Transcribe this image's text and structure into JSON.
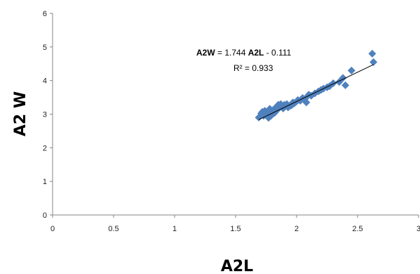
{
  "chart_data": {
    "type": "scatter",
    "xlabel": "A2L",
    "ylabel": "A2 W",
    "xlim": [
      0,
      3
    ],
    "ylim": [
      0,
      6
    ],
    "x_ticks": [
      "0",
      "0.5",
      "1",
      "1.5",
      "2",
      "2.5",
      "3"
    ],
    "y_ticks": [
      "0",
      "1",
      "2",
      "3",
      "4",
      "5",
      "6"
    ],
    "grid": false,
    "colors": {
      "points": "#4F81BD",
      "trendline": "#000000",
      "axis": "#868686"
    },
    "points": [
      [
        1.69,
        2.9
      ],
      [
        1.71,
        3.02
      ],
      [
        1.72,
        3.07
      ],
      [
        1.73,
        2.95
      ],
      [
        1.74,
        3.1
      ],
      [
        1.75,
        3.0
      ],
      [
        1.76,
        3.04
      ],
      [
        1.77,
        2.89
      ],
      [
        1.78,
        3.16
      ],
      [
        1.79,
        2.95
      ],
      [
        1.8,
        3.08
      ],
      [
        1.81,
        3.13
      ],
      [
        1.82,
        3.04
      ],
      [
        1.83,
        3.2
      ],
      [
        1.84,
        3.12
      ],
      [
        1.85,
        3.28
      ],
      [
        1.86,
        3.2
      ],
      [
        1.87,
        3.3
      ],
      [
        1.88,
        3.22
      ],
      [
        1.89,
        3.17
      ],
      [
        1.9,
        3.28
      ],
      [
        1.92,
        3.3
      ],
      [
        1.93,
        3.2
      ],
      [
        1.95,
        3.25
      ],
      [
        1.96,
        3.27
      ],
      [
        1.97,
        3.35
      ],
      [
        1.98,
        3.32
      ],
      [
        2.0,
        3.38
      ],
      [
        2.01,
        3.42
      ],
      [
        2.03,
        3.4
      ],
      [
        2.04,
        3.45
      ],
      [
        2.05,
        3.48
      ],
      [
        2.07,
        3.46
      ],
      [
        2.08,
        3.35
      ],
      [
        2.1,
        3.58
      ],
      [
        2.12,
        3.55
      ],
      [
        2.15,
        3.62
      ],
      [
        2.18,
        3.68
      ],
      [
        2.2,
        3.72
      ],
      [
        2.22,
        3.76
      ],
      [
        2.25,
        3.8
      ],
      [
        2.27,
        3.83
      ],
      [
        2.3,
        3.92
      ],
      [
        2.35,
        3.96
      ],
      [
        2.38,
        4.08
      ],
      [
        2.4,
        3.86
      ],
      [
        2.45,
        4.3
      ],
      [
        2.62,
        4.8
      ],
      [
        2.63,
        4.55
      ]
    ],
    "trendline": {
      "slope": 1.744,
      "intercept": -0.111,
      "x_range": [
        1.69,
        2.63
      ],
      "eq_y_var": "A2W",
      "eq_mid": " = 1.744 ",
      "eq_x_var": "A2L",
      "eq_tail": " - 0.111",
      "r2_text": "R² = 0.933"
    }
  }
}
